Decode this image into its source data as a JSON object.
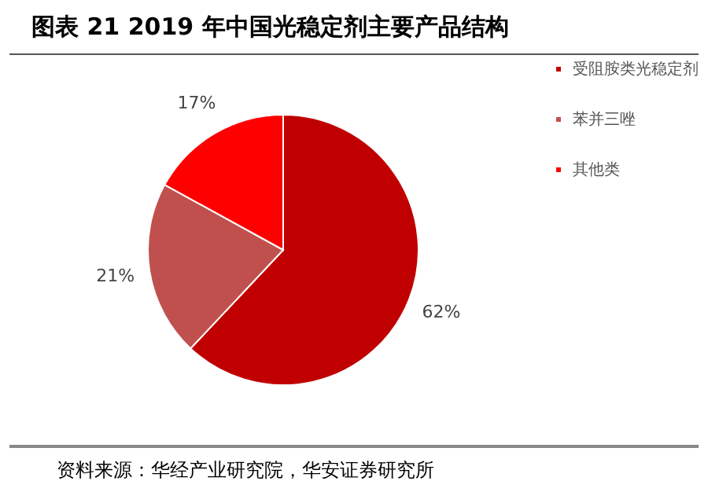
{
  "chart_data": {
    "type": "pie",
    "title": "图表 21 2019 年中国光稳定剂主要产品结构",
    "categories": [
      "受阻胺类光稳定剂",
      "苯并三唑",
      "其他类"
    ],
    "values": [
      62,
      21,
      17
    ],
    "colors": [
      "#c00000",
      "#c0504d",
      "#ff0000"
    ],
    "value_labels": [
      "62%",
      "21%",
      "17%"
    ],
    "legend": "right",
    "annotations": [
      "资料来源：华经产业研究院，华安证券研究所"
    ]
  }
}
